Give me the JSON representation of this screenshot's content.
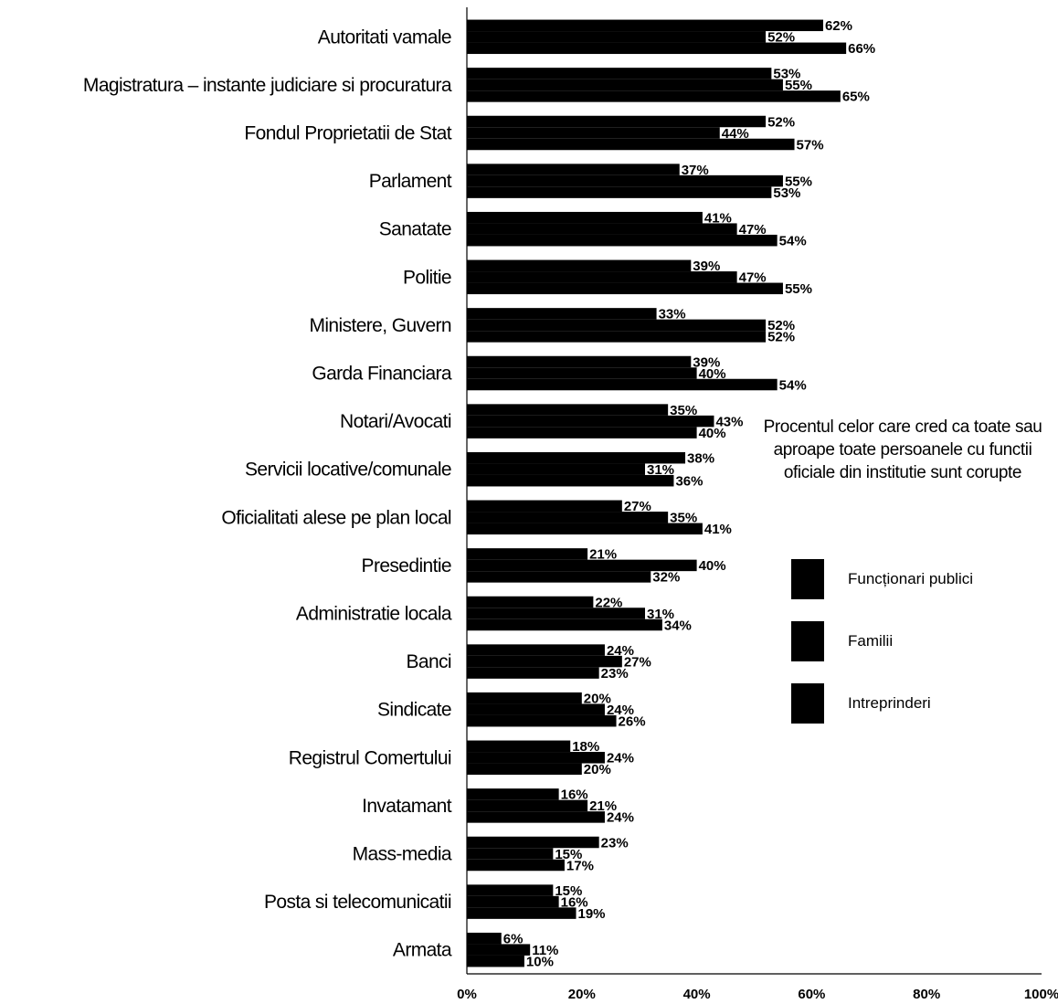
{
  "chart_data": {
    "type": "bar",
    "orientation": "horizontal",
    "title": "Procentul celor care cred ca toate sau aproape toate persoanele cu functii oficiale din institutie sunt corupte",
    "categories": [
      "Autoritati vamale",
      "Magistratura – instante judiciare si procuratura",
      "Fondul Proprietatii de Stat",
      "Parlament",
      "Sanatate",
      "Politie",
      "Ministere, Guvern",
      "Garda Financiara",
      "Notari/Avocati",
      "Servicii locative/comunale",
      "Oficialitati alese pe plan local",
      "Presedintie",
      "Administratie locala",
      "Banci",
      "Sindicate",
      "Registrul Comertului",
      "Invatamant",
      "Mass-media",
      "Posta si telecomunicatii",
      "Armata"
    ],
    "series": [
      {
        "name": "Funcționari publici",
        "color": "#000000",
        "values": [
          62,
          53,
          52,
          37,
          41,
          39,
          33,
          39,
          35,
          38,
          27,
          21,
          22,
          24,
          20,
          18,
          16,
          23,
          15,
          6
        ],
        "labels": [
          "62%",
          "53%",
          "52%",
          "37%",
          "41%",
          "39%",
          "33%",
          "39%",
          "35%",
          "38%",
          "27%",
          "21%",
          "22%",
          "24%",
          "20%",
          "18%",
          "16%",
          "23%",
          "15%",
          "6%"
        ]
      },
      {
        "name": "Familii",
        "color": "#000000",
        "values": [
          52,
          55,
          44,
          55,
          47,
          47,
          52,
          40,
          43,
          31,
          35,
          40,
          31,
          27,
          24,
          24,
          21,
          15,
          16,
          11
        ],
        "labels": [
          "52%",
          "55%",
          "44%",
          "55%",
          "47%",
          "47%",
          "52%",
          "40%",
          "43%",
          "31%",
          "35%",
          "40%",
          "31%",
          "27%",
          "24%",
          "24%",
          "21%",
          "15%",
          "16%",
          "11%"
        ]
      },
      {
        "name": "Intreprinderi",
        "color": "#000000",
        "values": [
          66,
          65,
          57,
          53,
          54,
          55,
          52,
          54,
          40,
          36,
          41,
          32,
          34,
          23,
          26,
          20,
          24,
          17,
          19,
          10
        ],
        "labels": [
          "66%",
          "65%",
          "57%",
          "53%",
          "54%",
          "55%",
          "52%",
          "54%",
          "40%",
          "36%",
          "41%",
          "32%",
          "34%",
          "23%",
          "26%",
          "20%",
          "24%",
          "17%",
          "19%",
          "10%"
        ]
      }
    ],
    "xlim": [
      0,
      100
    ],
    "xticks": [
      "0%",
      "20%",
      "40%",
      "60%",
      "80%",
      "100%"
    ],
    "legend_position": "right",
    "grid": false
  }
}
